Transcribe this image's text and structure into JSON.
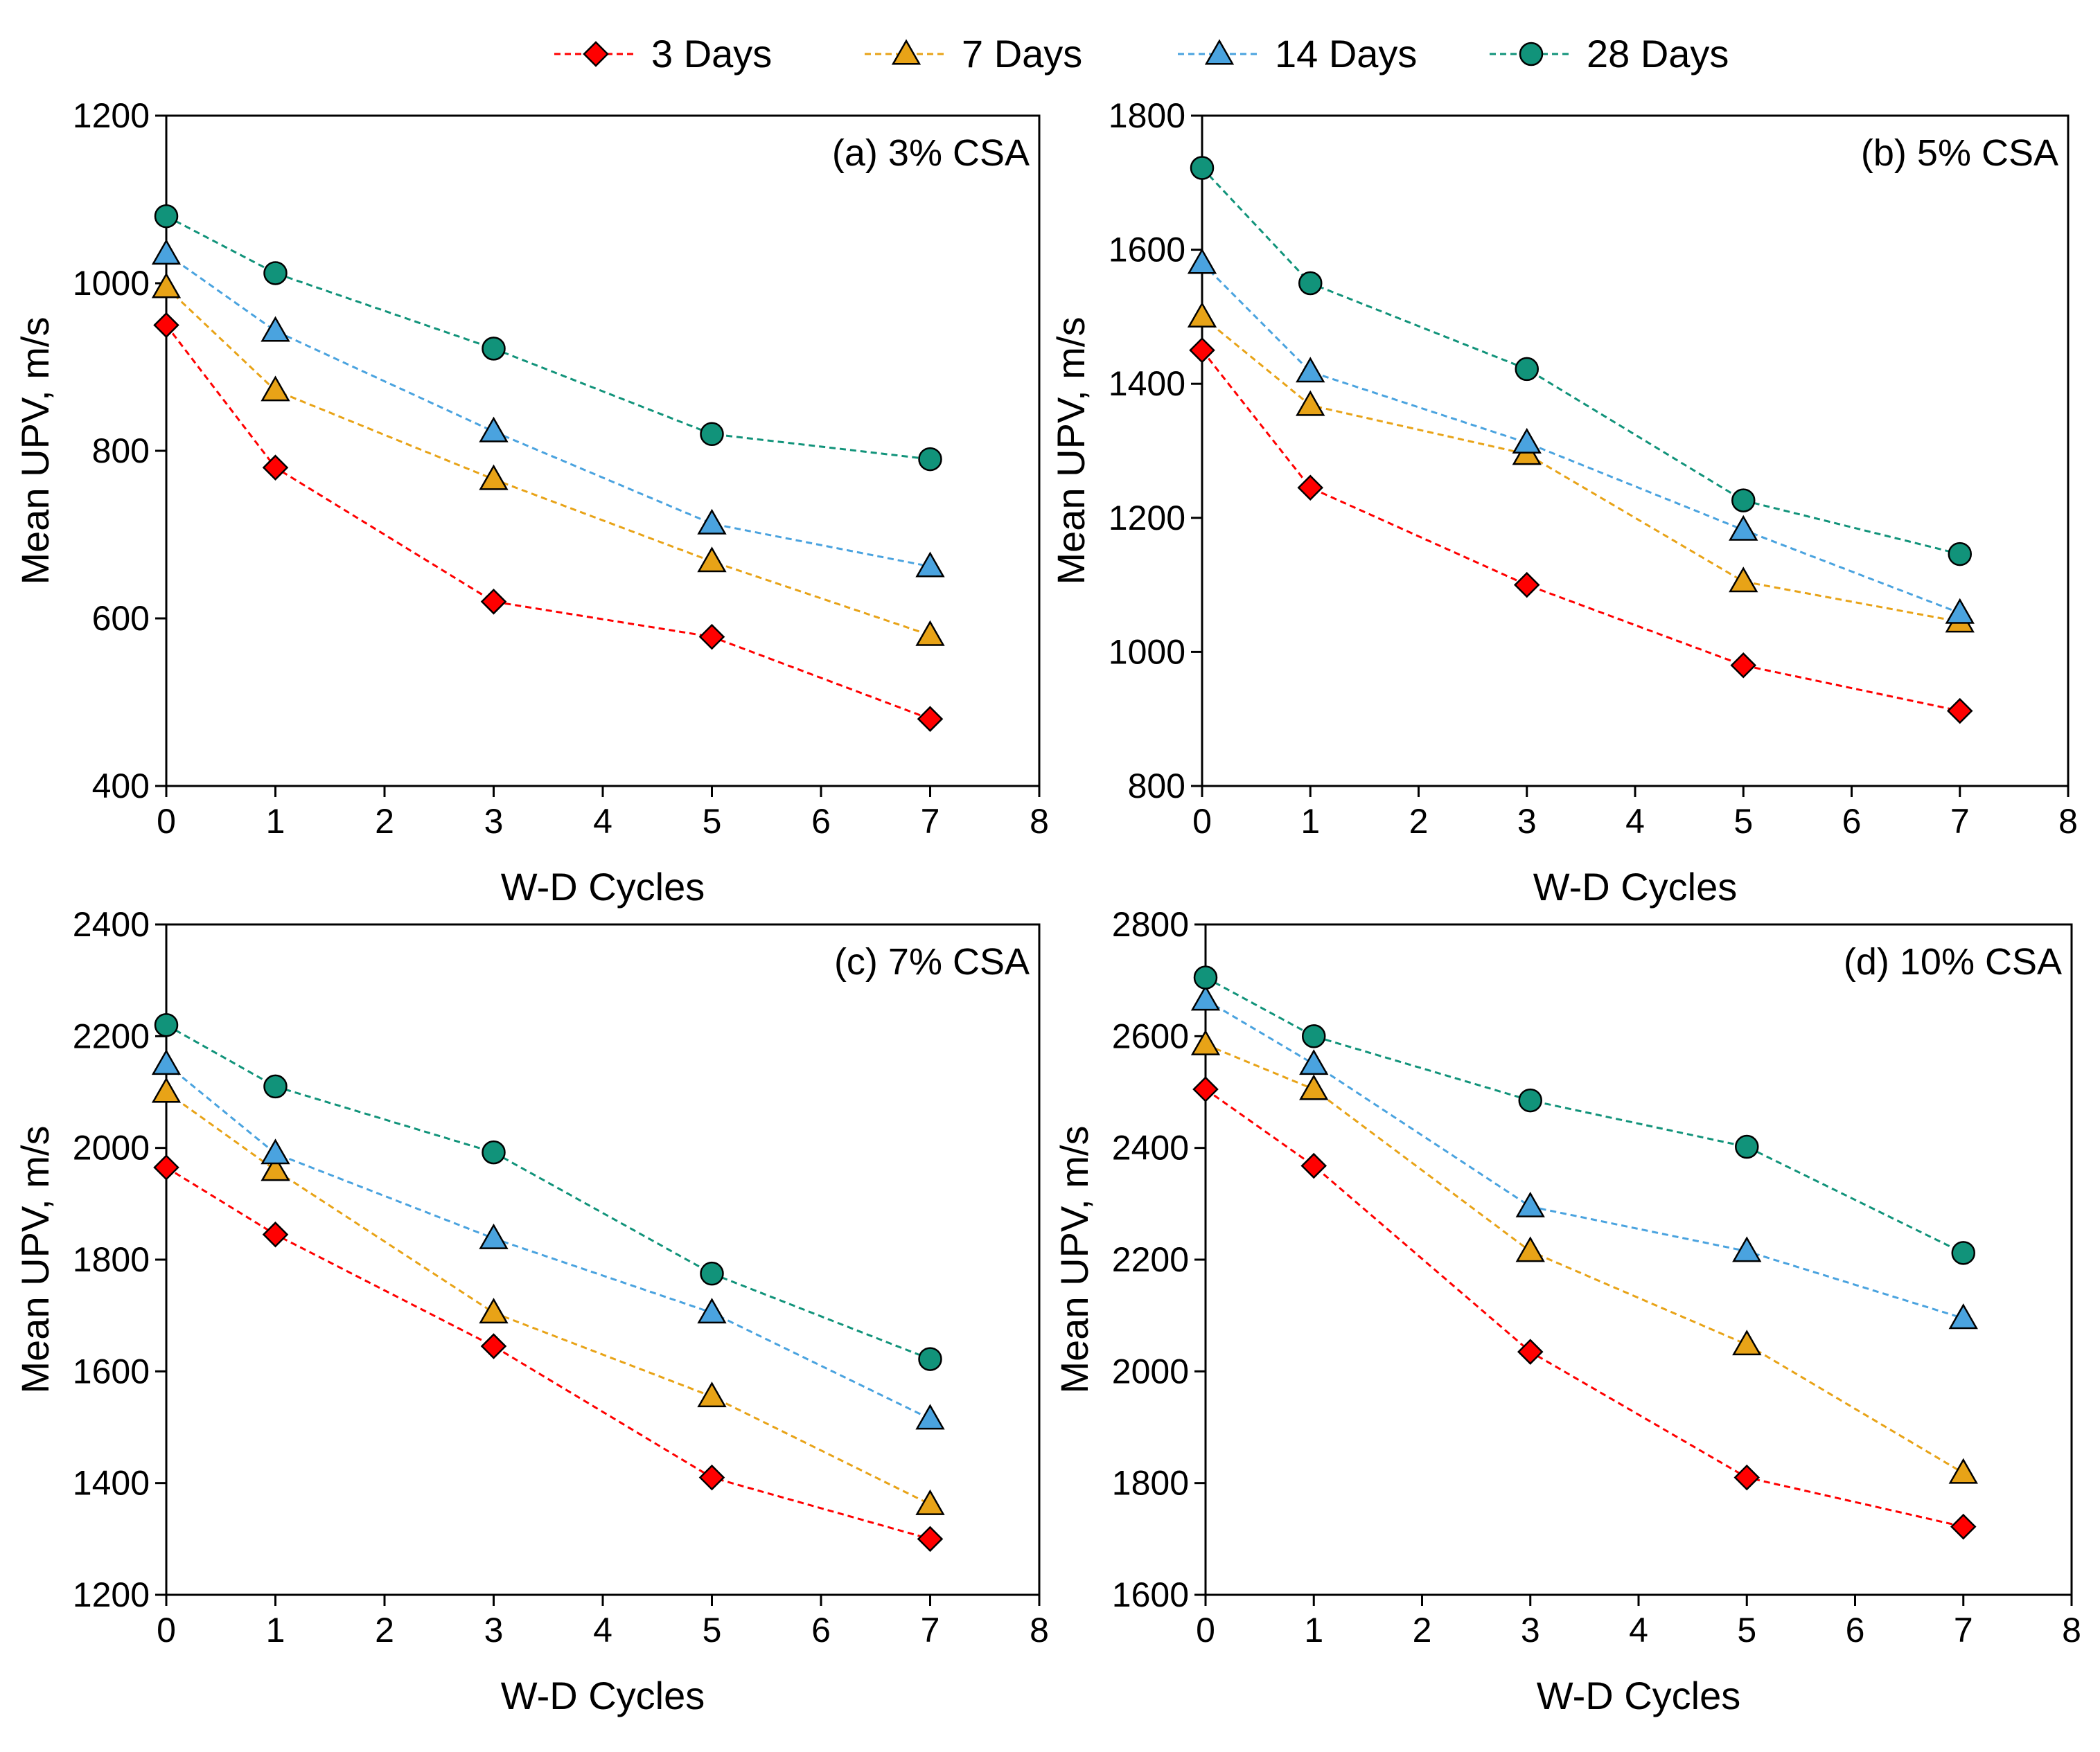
{
  "chart_data": {
    "type": "line",
    "legend": [
      {
        "name": "3 Days",
        "marker": "diamond",
        "color": "#ff0000"
      },
      {
        "name": "7  Days",
        "marker": "triangle",
        "color": "#e8a317"
      },
      {
        "name": "14  Days",
        "marker": "triangle",
        "color": "#4aa3df"
      },
      {
        "name": "28  Days",
        "marker": "circle",
        "color": "#11937a"
      }
    ],
    "legend_position": "top-center",
    "panels": [
      {
        "label": "(a) 3% CSA",
        "xlabel": "W-D Cycles",
        "ylabel": "Mean UPV, m/s",
        "xlim": [
          0,
          8
        ],
        "ylim": [
          400,
          1200
        ],
        "xticks": [
          "0",
          "1",
          "2",
          "3",
          "4",
          "5",
          "6",
          "7",
          "8"
        ],
        "yticks": [
          "400",
          "600",
          "800",
          "1000",
          "1200"
        ],
        "x": [
          0,
          1,
          3,
          5,
          7
        ],
        "series": [
          {
            "name": "3 Days",
            "values": [
              950,
              780,
              620,
              578,
              480
            ]
          },
          {
            "name": "7 Days",
            "values": [
              995,
              872,
              766,
              668,
              580
            ]
          },
          {
            "name": "14 Days",
            "values": [
              1035,
              943,
              823,
              713,
              662
            ]
          },
          {
            "name": "28 Days",
            "values": [
              1080,
              1012,
              922,
              820,
              790
            ]
          }
        ]
      },
      {
        "label": "(b) 5% CSA",
        "xlabel": "W-D Cycles",
        "ylabel": "Mean UPV,  m/s",
        "xlim": [
          0,
          8
        ],
        "ylim": [
          800,
          1800
        ],
        "xticks": [
          "0",
          "1",
          "2",
          "3",
          "4",
          "5",
          "6",
          "7",
          "8"
        ],
        "yticks": [
          "800",
          "1000",
          "1200",
          "1400",
          "1600",
          "1800"
        ],
        "x": [
          0,
          1,
          3,
          5,
          7
        ],
        "series": [
          {
            "name": "3 Days",
            "values": [
              1450,
              1245,
              1100,
              980,
              912
            ]
          },
          {
            "name": "7 Days",
            "values": [
              1500,
              1368,
              1295,
              1105,
              1045
            ]
          },
          {
            "name": "14 Days",
            "values": [
              1580,
              1418,
              1312,
              1182,
              1058
            ]
          },
          {
            "name": "28 Days",
            "values": [
              1722,
              1550,
              1422,
              1226,
              1146
            ]
          }
        ]
      },
      {
        "label": "(c) 7% CSA",
        "xlabel": "W-D Cycles",
        "ylabel": "Mean UPV,  m/s",
        "xlim": [
          0,
          8
        ],
        "ylim": [
          1200,
          2400
        ],
        "xticks": [
          "0",
          "1",
          "2",
          "3",
          "4",
          "5",
          "6",
          "7",
          "8"
        ],
        "yticks": [
          "1200",
          "1400",
          "1600",
          "1800",
          "2000",
          "2200",
          "2400"
        ],
        "x": [
          0,
          1,
          3,
          5,
          7
        ],
        "series": [
          {
            "name": "3 Days",
            "values": [
              1965,
              1845,
              1645,
              1410,
              1300
            ]
          },
          {
            "name": "7 Days",
            "values": [
              2100,
              1960,
              1705,
              1555,
              1362
            ]
          },
          {
            "name": "14 Days",
            "values": [
              2150,
              1990,
              1838,
              1705,
              1515
            ]
          },
          {
            "name": "28 Days",
            "values": [
              2220,
              2110,
              1992,
              1775,
              1622
            ]
          }
        ]
      },
      {
        "label": "(d) 10% CSA",
        "xlabel": "W-D Cycles",
        "ylabel": "Mean UPV,  m/s",
        "xlim": [
          0,
          8
        ],
        "ylim": [
          1600,
          2800
        ],
        "xticks": [
          "0",
          "1",
          "2",
          "3",
          "4",
          "5",
          "6",
          "7",
          "8"
        ],
        "yticks": [
          "1600",
          "1800",
          "2000",
          "2200",
          "2400",
          "2600",
          "2800"
        ],
        "x": [
          0,
          1,
          3,
          5,
          7
        ],
        "series": [
          {
            "name": "3 Days",
            "values": [
              2505,
              2368,
              2035,
              1810,
              1722
            ]
          },
          {
            "name": "7 Days",
            "values": [
              2585,
              2505,
              2215,
              2048,
              1818
            ]
          },
          {
            "name": "14 Days",
            "values": [
              2665,
              2550,
              2295,
              2215,
              2095
            ]
          },
          {
            "name": "28 Days",
            "values": [
              2705,
              2600,
              2485,
              2402,
              2212
            ]
          }
        ]
      }
    ]
  }
}
